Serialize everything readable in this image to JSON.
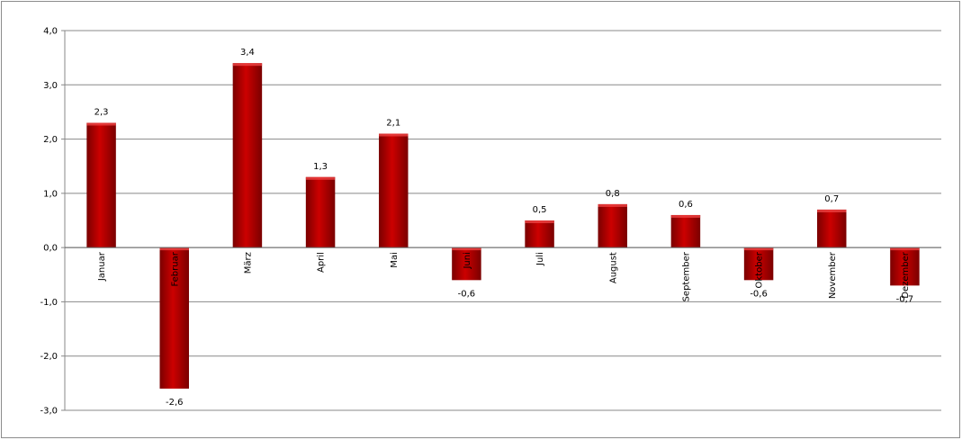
{
  "chart_data": {
    "type": "bar",
    "categories": [
      "Januar",
      "Februar",
      "März",
      "April",
      "Mai",
      "Juni",
      "Juli",
      "August",
      "September",
      "Oktober",
      "November",
      "Dezember"
    ],
    "values": [
      2.3,
      -2.6,
      3.4,
      1.3,
      2.1,
      -0.6,
      0.5,
      0.8,
      0.6,
      -0.6,
      0.7,
      -0.7
    ],
    "data_labels": [
      "2,3",
      "-2,6",
      "3,4",
      "1,3",
      "2,1",
      "-0,6",
      "0,5",
      "0,8",
      "0,6",
      "-0,6",
      "0,7",
      "-0,7"
    ],
    "y_ticks": [
      4,
      3,
      2,
      1,
      0,
      -1,
      -2,
      -3
    ],
    "y_tick_labels": [
      "4,0",
      "3,0",
      "2,0",
      "1,0",
      "0,0",
      "-1,0",
      "-2,0",
      "-3,0"
    ],
    "ylim": [
      -3,
      4
    ],
    "grid": true,
    "legend": "none",
    "title": "",
    "xlabel": "",
    "ylabel": "",
    "colors": {
      "bar": "#cc0000",
      "bar_dark": "#7a0000",
      "bar_light": "#ee4444",
      "grid": "#888888"
    }
  }
}
